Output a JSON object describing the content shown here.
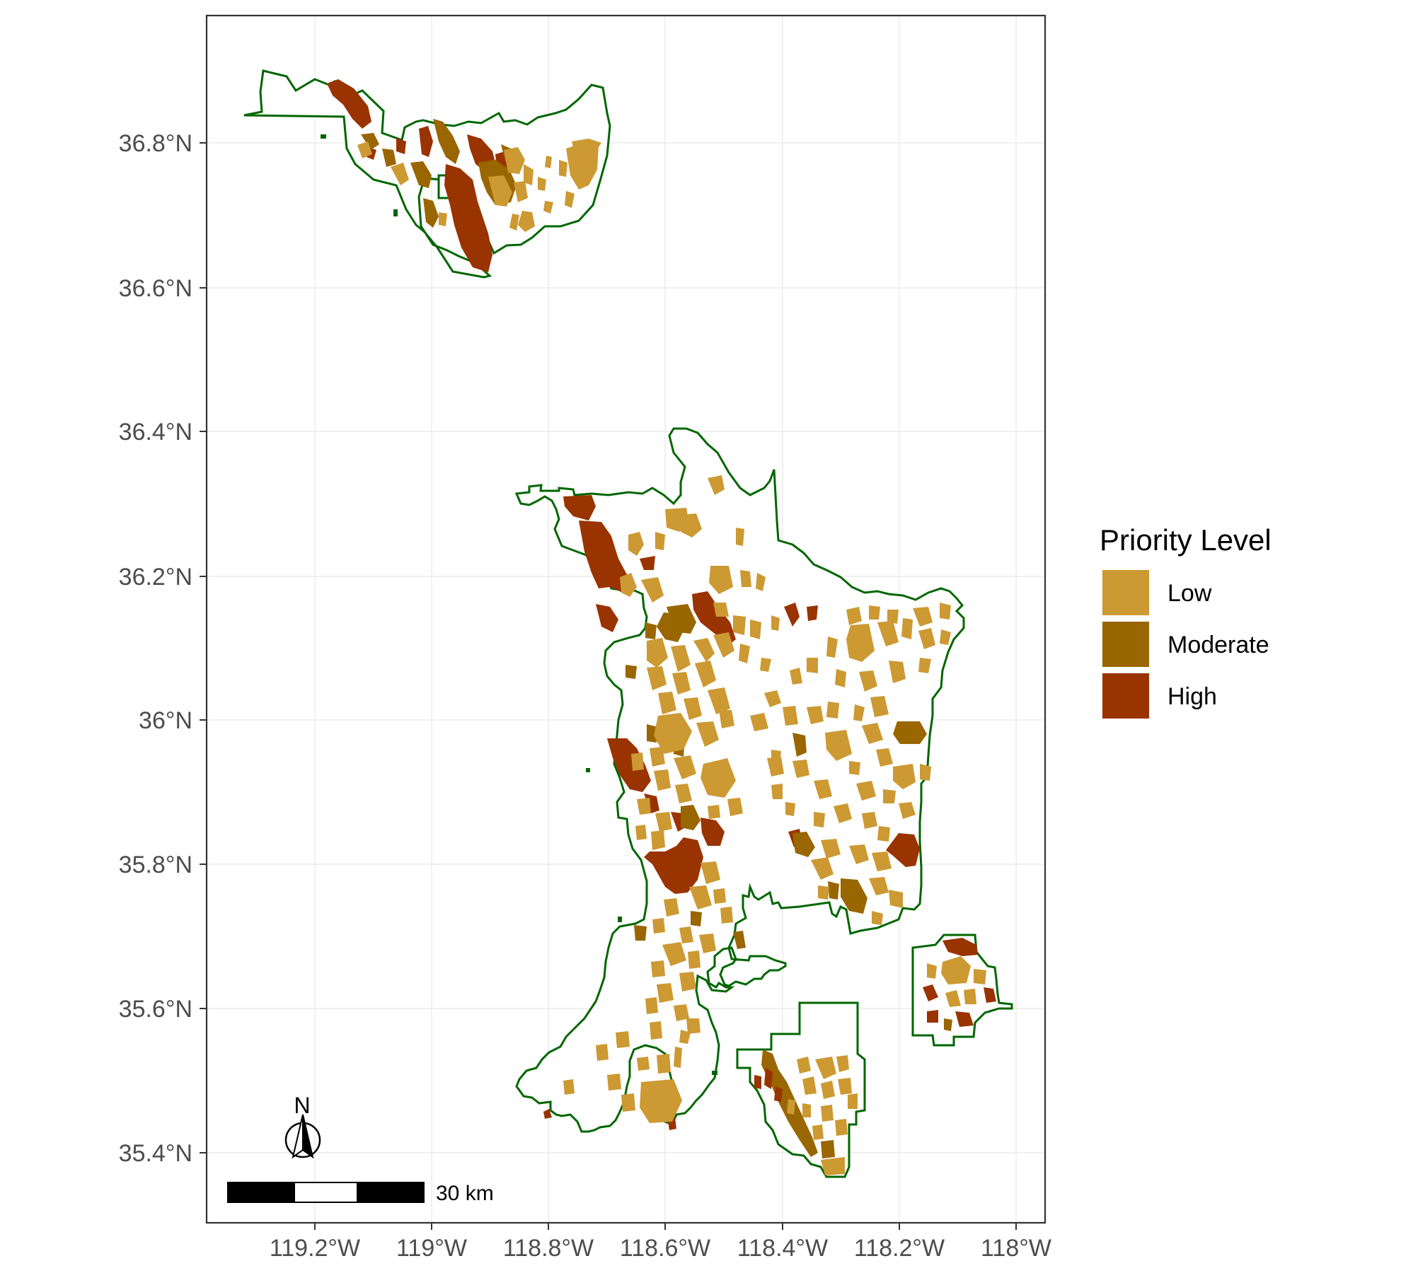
{
  "map": {
    "axes": {
      "lat_ticks": [
        "36.8°N",
        "36.6°N",
        "36.4°N",
        "36.2°N",
        "36°N",
        "35.8°N",
        "35.6°N",
        "35.4°N"
      ],
      "lon_ticks": [
        "119.2°W",
        "119°W",
        "118.8°W",
        "118.6°W",
        "118.4°W",
        "118.2°W",
        "118°W"
      ]
    },
    "legend": {
      "title": "Priority Level",
      "items": [
        {
          "label": "Low",
          "color": "#CC9933"
        },
        {
          "label": "Moderate",
          "color": "#996600"
        },
        {
          "label": "High",
          "color": "#993300"
        }
      ]
    },
    "scale_bar": {
      "label": "30 km"
    },
    "north_arrow": {
      "label": "N"
    },
    "colors": {
      "boundary": "#006600",
      "grid": "#ebebeb",
      "panel_border": "#333333"
    }
  }
}
